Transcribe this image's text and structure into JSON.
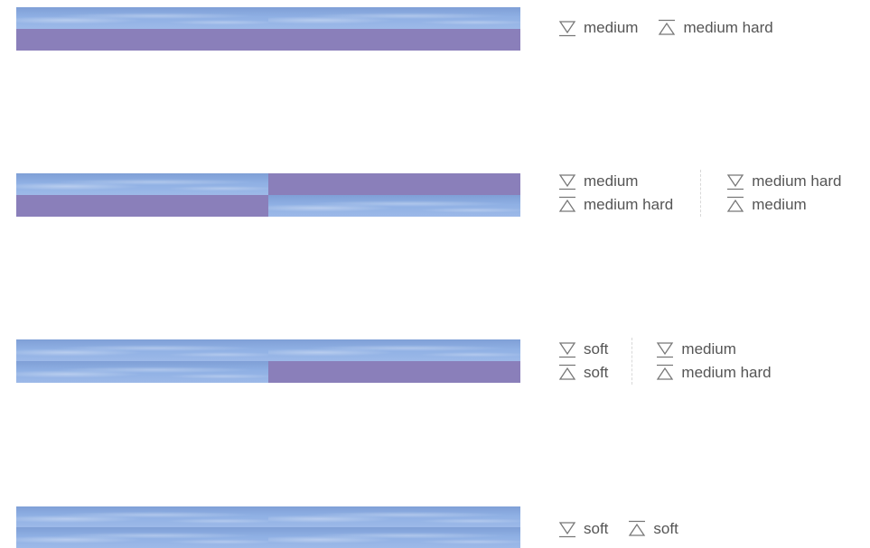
{
  "colors": {
    "purple": "#8a7fba",
    "sky": "#8fb0e4",
    "text": "#555555",
    "icon_stroke": "#777777",
    "divider": "#d8d8d8"
  },
  "icons": {
    "bottom": "triangle-down-underline-icon",
    "top": "triangle-up-overline-icon"
  },
  "rows": [
    {
      "legend": [
        {
          "bottom": "medium",
          "top": "medium hard"
        }
      ]
    },
    {
      "legend": [
        {
          "bottom": "medium",
          "top": "medium hard"
        },
        {
          "bottom": "medium hard",
          "top": "medium"
        }
      ]
    },
    {
      "legend": [
        {
          "bottom": "soft",
          "top": "soft"
        },
        {
          "bottom": "medium",
          "top": "medium hard"
        }
      ]
    },
    {
      "legend": [
        {
          "bottom": "soft",
          "top": "soft"
        }
      ]
    }
  ]
}
